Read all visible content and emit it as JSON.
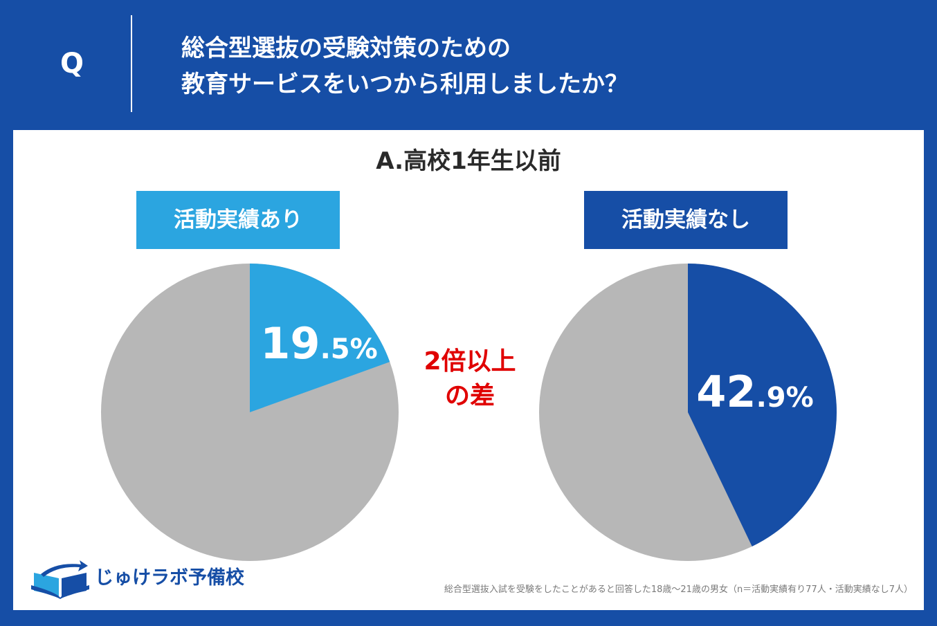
{
  "header": {
    "q_mark": "Q",
    "question_line1": "総合型選抜の受験対策のための",
    "question_line2": "教育サービスをいつから利用しましたか？"
  },
  "answer_title": "A.高校1年生以前",
  "comparison": {
    "line1": "2倍以上",
    "line2": "の差"
  },
  "logo_text": "じゅけラボ予備校",
  "footnote": "総合型選抜入試を受験をしたことがあると回答した18歳～21歳の男女（n＝活動実績有り77人・活動実績なし7人）",
  "colors": {
    "brand_navy": "#164EA6",
    "accent_light_blue": "#2BA5E0",
    "remainder_gray": "#B7B7B7",
    "highlight_red": "#E00000"
  },
  "chart_data": [
    {
      "type": "pie",
      "title": "活動実績あり",
      "value": 19.5,
      "label_main": "19",
      "label_sub": ".5%",
      "slice_color": "#2BA5E0",
      "rest_color": "#B7B7B7"
    },
    {
      "type": "pie",
      "title": "活動実績なし",
      "value": 42.9,
      "label_main": "42",
      "label_sub": ".9%",
      "slice_color": "#164EA6",
      "rest_color": "#B7B7B7"
    }
  ]
}
